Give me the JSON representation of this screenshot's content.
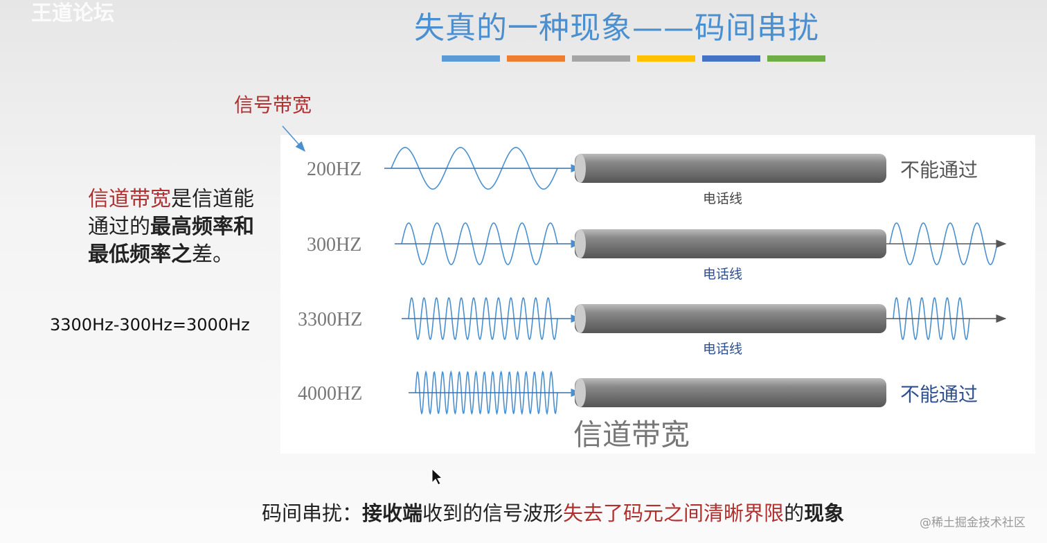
{
  "watermark": "王道论坛",
  "title": "失真的一种现象——码间串扰",
  "color_bars": [
    "#5b9bd5",
    "#ed7d31",
    "#a5a5a5",
    "#ffc000",
    "#4472c4",
    "#70ad47"
  ],
  "signal_bandwidth_label": "信号带宽",
  "definition": {
    "part1": "信道带宽",
    "part2": "是信道能通过的",
    "part3": "最高频率和最低频率之",
    "part4": "差。"
  },
  "calculation": "3300Hz-300Hz=3000Hz",
  "rows": [
    {
      "freq": "200HZ",
      "cable": "电话线",
      "result": "不能通过",
      "cycles": 3,
      "passes": false
    },
    {
      "freq": "300HZ",
      "cable": "电话线",
      "result": "",
      "cycles": 5.5,
      "passes": true
    },
    {
      "freq": "3300HZ",
      "cable": "电话线",
      "result": "",
      "cycles": 12,
      "passes": true
    },
    {
      "freq": "4000HZ",
      "cable": "",
      "result": "不能通过",
      "cycles": 17,
      "passes": false
    }
  ],
  "channel_bandwidth_label": "信道带宽",
  "bottom": {
    "a": "码间串扰：",
    "b": "接收端",
    "c": "收到的信号波形",
    "d": "失去了码元之间清晰界限",
    "e": "的",
    "f": "现象"
  },
  "credit": "@稀土掘金技术社区",
  "colors": {
    "wave": "#4a8fd0",
    "title": "#4a8fd0",
    "red": "#b03030"
  }
}
